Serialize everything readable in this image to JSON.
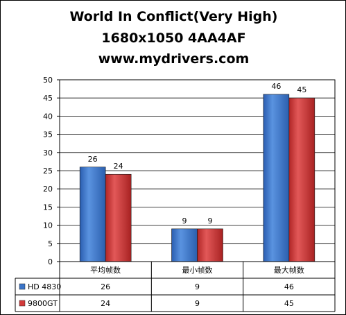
{
  "chart_data": {
    "type": "bar",
    "title_lines": [
      "World In Conflict(Very High)",
      "1680x1050 4AA4AF",
      "www.mydrivers.com"
    ],
    "categories": [
      "平均帧数",
      "最小帧数",
      "最大帧数"
    ],
    "series": [
      {
        "name": "HD 4830",
        "values": [
          26,
          9,
          46
        ],
        "color": "#3a74c8"
      },
      {
        "name": "9800GT",
        "values": [
          24,
          9,
          45
        ],
        "color": "#d23a3a"
      }
    ],
    "ylim": [
      0,
      50
    ],
    "yticks": [
      0,
      5,
      10,
      15,
      20,
      25,
      30,
      35,
      40,
      45,
      50
    ],
    "grid": true,
    "legend": "data table"
  }
}
